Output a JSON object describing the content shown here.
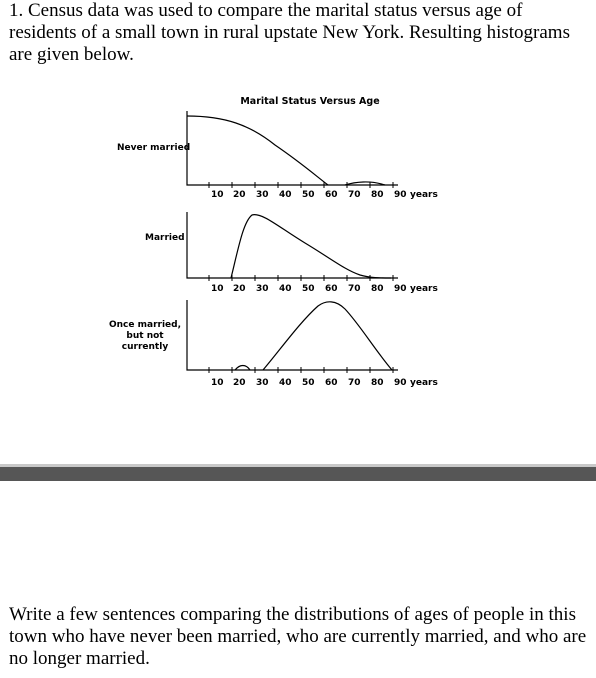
{
  "question": {
    "text": "1. Census data was used to compare the marital status versus age of residents of a small town in rural upstate New York. Resulting histograms are given below."
  },
  "figure": {
    "title": "Marital Status Versus Age",
    "panels": [
      {
        "label_lines": [
          "Never married"
        ],
        "ticks": [
          "10",
          "20",
          "30",
          "40",
          "50",
          "60",
          "70",
          "80",
          "90"
        ],
        "unit": "years"
      },
      {
        "label_lines": [
          "Married"
        ],
        "ticks": [
          "10",
          "20",
          "30",
          "40",
          "50",
          "60",
          "70",
          "80",
          "90"
        ],
        "unit": "years"
      },
      {
        "label_lines": [
          "Once married,",
          "but not",
          "currently"
        ],
        "ticks": [
          "10",
          "20",
          "30",
          "40",
          "50",
          "60",
          "70",
          "80",
          "90"
        ],
        "unit": "years"
      }
    ]
  },
  "prompt": {
    "text": "Write a few sentences comparing the distributions of ages of people in this town who have never been married, who are currently married, and who are no longer married."
  }
}
